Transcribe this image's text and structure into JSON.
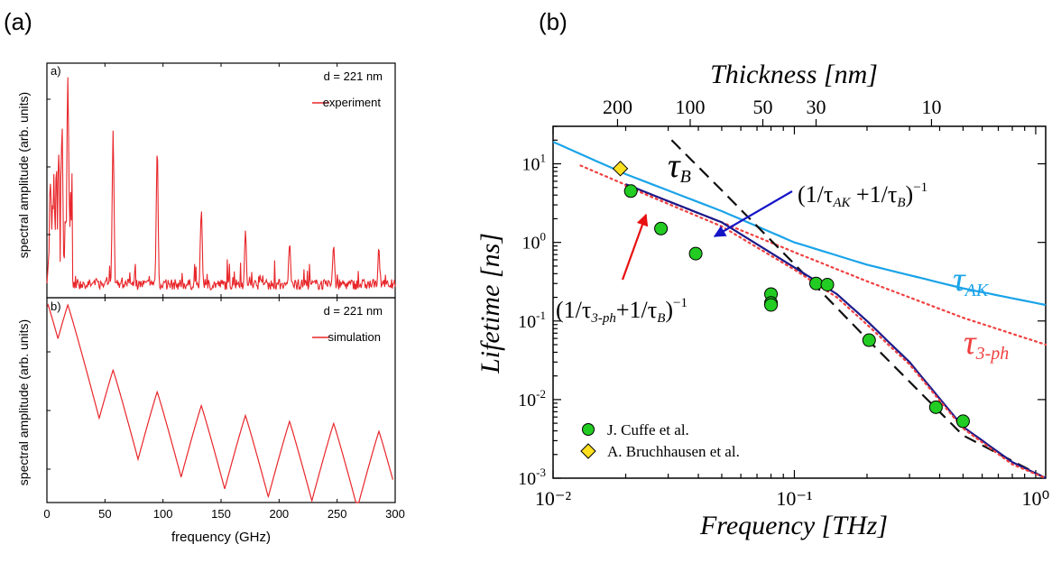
{
  "panel_labels": {
    "a": "(a)",
    "b": "(b)"
  },
  "chart_data": [
    {
      "type": "line",
      "panel": "a",
      "subpanel_label": "a)",
      "annotation": "d = 221 nm",
      "legend": "experiment",
      "ylabel": "spectral amplitude (arb. units)",
      "xlim": [
        0,
        300
      ],
      "ylim": [
        0,
        1
      ],
      "color": "#e8262a",
      "peaks": [
        [
          5,
          0.42
        ],
        [
          10,
          0.62
        ],
        [
          13,
          0.75
        ],
        [
          18,
          1.0
        ],
        [
          57,
          0.75
        ],
        [
          95,
          0.66
        ],
        [
          133,
          0.38
        ],
        [
          171,
          0.25
        ],
        [
          209,
          0.22
        ],
        [
          247,
          0.21
        ],
        [
          286,
          0.19
        ]
      ]
    },
    {
      "type": "line",
      "panel": "a",
      "subpanel_label": "b)",
      "annotation": "d = 221 nm",
      "legend": "simulation",
      "ylabel": "spectral amplitude (arb. units)",
      "xlabel": "frequency (GHz)",
      "xlim": [
        0,
        300
      ],
      "xticks": [
        "0",
        "50",
        "100",
        "150",
        "200",
        "250",
        "300"
      ],
      "color": "#e8262a",
      "peaks": [
        [
          1,
          1.0
        ],
        [
          18,
          1.0
        ],
        [
          57,
          0.67
        ],
        [
          95,
          0.56
        ],
        [
          133,
          0.49
        ],
        [
          171,
          0.44
        ],
        [
          209,
          0.41
        ],
        [
          247,
          0.4
        ],
        [
          286,
          0.36
        ]
      ]
    },
    {
      "type": "line",
      "panel": "b",
      "xscale": "log",
      "yscale": "log",
      "xlim": [
        0.01,
        1.1
      ],
      "ylim": [
        0.001,
        30
      ],
      "xlabel": "Frequency [THz]",
      "ylabel": "Lifetime [ns]",
      "top_axis_label": "Thickness [nm]",
      "xticks": [
        {
          "v": 0.01,
          "label": "10⁻²"
        },
        {
          "v": 0.1,
          "label": "10⁻¹"
        },
        {
          "v": 1,
          "label": "10⁰"
        }
      ],
      "yticks": [
        {
          "v": 0.001,
          "base": "10",
          "exp": "-3"
        },
        {
          "v": 0.01,
          "base": "10",
          "exp": "-2"
        },
        {
          "v": 0.1,
          "base": "10",
          "exp": "-1"
        },
        {
          "v": 1,
          "base": "10",
          "exp": "0"
        },
        {
          "v": 10,
          "base": "10",
          "exp": "1"
        }
      ],
      "top_ticks": [
        {
          "label": "200",
          "f": 0.0185
        },
        {
          "label": "100",
          "f": 0.037
        },
        {
          "label": "50",
          "f": 0.074
        },
        {
          "label": "30",
          "f": 0.123
        },
        {
          "label": "10",
          "f": 0.37
        }
      ],
      "series": [
        {
          "name": "τAK",
          "color": "#1aa3e8",
          "style": "solid",
          "x": [
            0.01,
            0.02,
            0.05,
            0.1,
            0.2,
            0.5,
            1.1
          ],
          "y": [
            19,
            7.4,
            2.5,
            1.0,
            0.52,
            0.26,
            0.16
          ]
        },
        {
          "name": "τ3-ph",
          "color": "#f04040",
          "style": "dotted",
          "x": [
            0.013,
            0.02,
            0.05,
            0.1,
            0.2,
            0.5,
            1.1
          ],
          "y": [
            9.5,
            5.4,
            1.8,
            0.75,
            0.32,
            0.11,
            0.05
          ]
        },
        {
          "name": "τB",
          "color": "#111111",
          "style": "dashed",
          "x": [
            0.031,
            0.05,
            0.1,
            0.2,
            0.5,
            1.1
          ],
          "y": [
            20,
            4.6,
            0.53,
            0.059,
            0.0035,
            0.001
          ]
        },
        {
          "name": "(1/τAK+1/τB)⁻¹",
          "color": "#1a1a8a",
          "style": "solid",
          "x": [
            0.02,
            0.05,
            0.1,
            0.15,
            0.2,
            0.3,
            0.5,
            0.8,
            1.1
          ],
          "y": [
            5.5,
            1.8,
            0.48,
            0.22,
            0.1,
            0.03,
            0.0045,
            0.0016,
            0.001
          ]
        },
        {
          "name": "(1/τ3-ph+1/τB)⁻¹",
          "color": "#f04040",
          "style": "dotted",
          "x": [
            0.02,
            0.05,
            0.1,
            0.15,
            0.2,
            0.3,
            0.5,
            0.8,
            1.1
          ],
          "y": [
            5.2,
            1.6,
            0.45,
            0.2,
            0.09,
            0.028,
            0.0043,
            0.0015,
            0.001
          ]
        }
      ],
      "points": [
        {
          "name": "J. Cuffe et al.",
          "marker": "circle",
          "color": "#22cc22",
          "x": [
            0.021,
            0.028,
            0.039,
            0.08,
            0.08,
            0.08,
            0.123,
            0.137,
            0.204,
            0.386,
            0.5
          ],
          "y": [
            4.5,
            1.5,
            0.72,
            0.22,
            0.17,
            0.16,
            0.3,
            0.29,
            0.057,
            0.008,
            0.0053
          ]
        },
        {
          "name": "A. Bruchhausen et al.",
          "marker": "diamond",
          "color": "#ffe020",
          "x": [
            0.019
          ],
          "y": [
            8.7
          ]
        }
      ],
      "labels": {
        "tauB": "τ",
        "tauB_sub": "B",
        "tauAK": "τ",
        "tauAK_sub": "AK",
        "tau3ph": "τ",
        "tau3ph_sub": "3-ph",
        "comb_ak_pre": "(1/τ",
        "comb_ak_sub1": "AK",
        "comb_ak_mid": " +1/τ",
        "comb_ak_sub2": "B",
        "comb_ak_post": ")",
        "comb_ak_exp": "−1",
        "comb_3ph_pre": "(1/τ",
        "comb_3ph_sub1": "3-ph",
        "comb_3ph_mid": "+1/τ",
        "comb_3ph_sub2": "B",
        "comb_3ph_post": ")",
        "comb_3ph_exp": "−1"
      }
    }
  ]
}
